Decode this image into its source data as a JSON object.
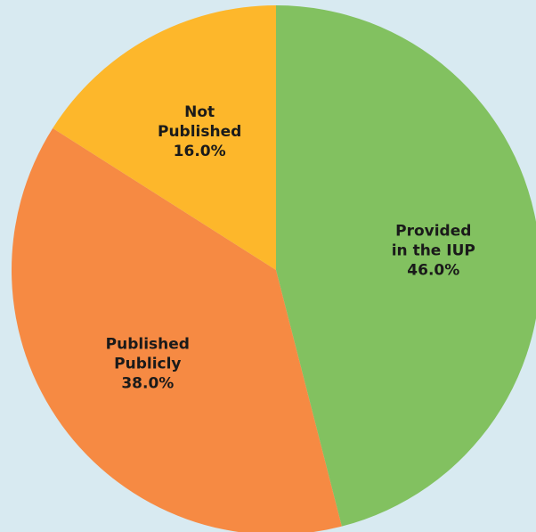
{
  "chart_data": {
    "type": "pie",
    "title": "",
    "slices": [
      {
        "line1": "Provided",
        "line2": "in the IUP",
        "value": 46.0,
        "value_label": "46.0%",
        "color": "#82c160"
      },
      {
        "line1": "Published",
        "line2": "Publicly",
        "value": 38.0,
        "value_label": "38.0%",
        "color": "#f68a43"
      },
      {
        "line1": "Not",
        "line2": "Published",
        "value": 16.0,
        "value_label": "16.0%",
        "color": "#fdb72b"
      }
    ],
    "start_angle_deg": 0,
    "direction": "clockwise",
    "legend": "none"
  }
}
